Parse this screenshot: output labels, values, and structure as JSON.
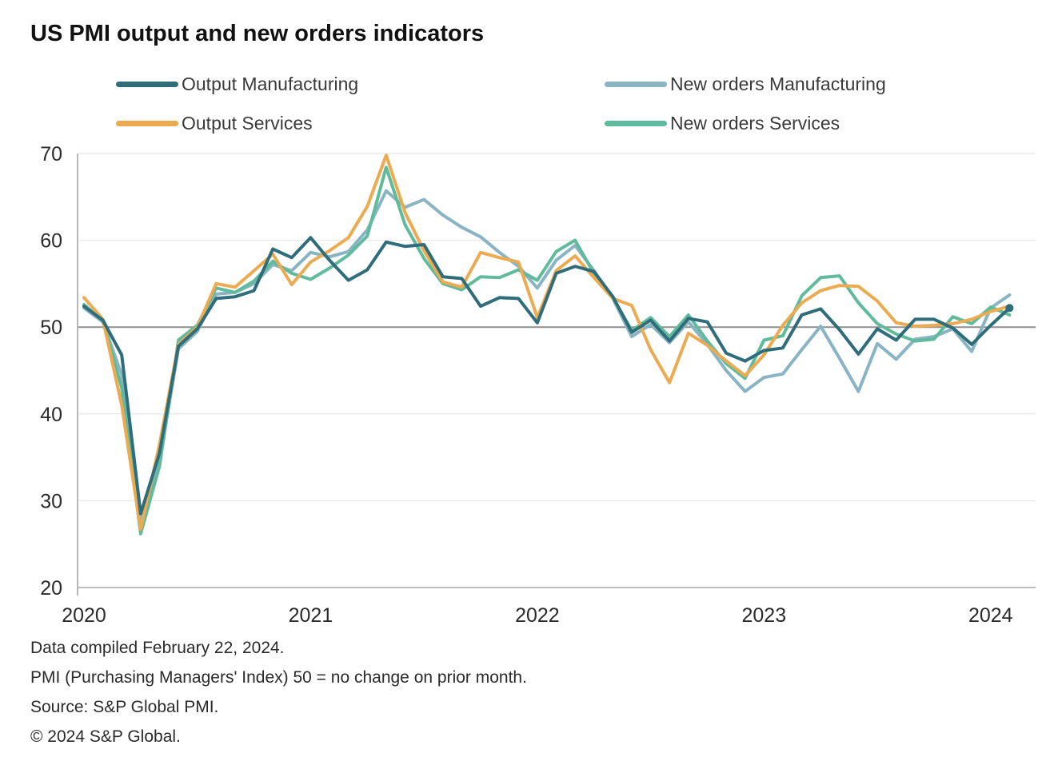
{
  "title": "US PMI output and new orders indicators",
  "footnotes": [
    "Data compiled February 22, 2024.",
    "PMI (Purchasing Managers' Index) 50 = no change on prior month.",
    "Source: S&P Global PMI.",
    "© 2024 S&P Global."
  ],
  "chart_data": {
    "type": "line",
    "title": "US PMI output and new orders indicators",
    "x_frequency": "monthly",
    "x_start": "2020-01",
    "x_end": "2024-02",
    "x_tick_labels": [
      "2020",
      "2021",
      "2022",
      "2023",
      "2024"
    ],
    "x_tick_month_indices": [
      0,
      12,
      24,
      36,
      48
    ],
    "y_ticks": [
      70,
      60,
      50,
      40,
      30,
      20
    ],
    "ylim": [
      20,
      70
    ],
    "baseline_value": 50,
    "grid": "horizontal-faint",
    "legend_position": "top",
    "series": [
      {
        "name": "Output Manufacturing",
        "color": "#2e6d79",
        "end_marker": true,
        "values": [
          52.4,
          50.8,
          46.8,
          28.5,
          35.5,
          47.8,
          49.8,
          53.3,
          53.5,
          54.2,
          59.0,
          58.0,
          60.3,
          57.7,
          55.4,
          56.6,
          59.8,
          59.3,
          59.5,
          55.8,
          55.6,
          52.4,
          53.4,
          53.3,
          50.5,
          56.2,
          57.0,
          56.4,
          53.5,
          49.4,
          50.8,
          48.4,
          51.0,
          50.6,
          47.0,
          46.1,
          47.3,
          47.6,
          51.4,
          52.1,
          49.7,
          46.9,
          49.8,
          48.5,
          50.9,
          50.9,
          49.9,
          48.0,
          50.2,
          52.2
        ]
      },
      {
        "name": "Output Services",
        "color": "#ecaa51",
        "end_marker": false,
        "values": [
          53.4,
          50.9,
          41.0,
          26.7,
          36.5,
          48.0,
          50.0,
          55.0,
          54.6,
          56.5,
          58.4,
          54.9,
          57.5,
          58.8,
          60.3,
          63.9,
          69.8,
          63.2,
          58.8,
          55.2,
          54.6,
          58.6,
          58.0,
          57.5,
          51.1,
          56.5,
          58.2,
          55.7,
          53.3,
          52.5,
          47.4,
          43.6,
          49.3,
          47.9,
          46.1,
          44.4,
          46.8,
          50.2,
          52.8,
          54.2,
          54.8,
          54.7,
          53.0,
          50.5,
          50.1,
          50.2,
          50.4,
          50.9,
          51.8,
          52.4
        ]
      },
      {
        "name": "New orders Manufacturing",
        "color": "#88b4c3",
        "end_marker": false,
        "values": [
          52.2,
          50.6,
          44.5,
          27.8,
          34.5,
          47.5,
          49.5,
          53.8,
          54.0,
          55.0,
          57.2,
          56.5,
          58.6,
          58.1,
          58.7,
          61.2,
          65.7,
          63.8,
          64.7,
          62.9,
          61.5,
          60.4,
          58.6,
          57.0,
          54.5,
          57.7,
          59.4,
          56.5,
          53.3,
          48.9,
          50.3,
          48.2,
          50.6,
          48.0,
          45.0,
          42.6,
          44.2,
          44.6,
          47.4,
          50.1,
          46.4,
          42.6,
          48.1,
          46.3,
          48.6,
          48.9,
          49.8,
          47.2,
          52.2,
          53.7
        ]
      },
      {
        "name": "New orders Services",
        "color": "#5fbb9b",
        "end_marker": false,
        "values": [
          52.6,
          50.7,
          43.0,
          26.2,
          34.0,
          48.5,
          50.2,
          54.5,
          54.0,
          55.3,
          57.6,
          56.2,
          55.5,
          56.8,
          58.3,
          60.5,
          68.4,
          61.8,
          57.9,
          55.0,
          54.3,
          55.8,
          55.7,
          56.6,
          55.4,
          58.7,
          60.0,
          56.2,
          53.4,
          49.6,
          51.1,
          48.9,
          51.4,
          48.4,
          45.8,
          44.1,
          48.5,
          49.0,
          53.6,
          55.7,
          55.9,
          52.8,
          50.4,
          49.2,
          48.4,
          48.6,
          51.2,
          50.4,
          52.3,
          51.4
        ]
      }
    ]
  }
}
